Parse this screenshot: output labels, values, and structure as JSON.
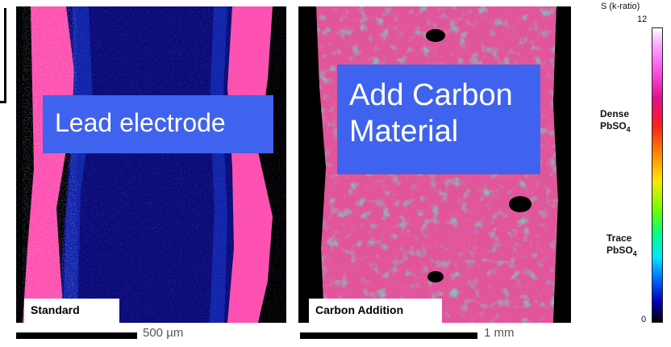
{
  "overlays": {
    "left_label": "Lead electrode",
    "right_label_line1": "Add Carbon",
    "right_label_line2": "Material"
  },
  "panels": {
    "left_tag": "Standard",
    "right_tag": "Carbon Addition"
  },
  "scalebars": {
    "left": "500 µm",
    "right": "1 mm"
  },
  "colorbar": {
    "title": "S (k-ratio)",
    "max": "12",
    "min": "0",
    "dense_line1": "Dense",
    "dense_line2": "PbSO",
    "dense_sub": "4",
    "trace_line1": "Trace",
    "trace_line2": "PbSO",
    "trace_sub": "4"
  },
  "colors": {
    "overlay_blue": "#3f63ee",
    "lead_core": "#0a0a78",
    "rim_pink": "#ff4fb0"
  }
}
